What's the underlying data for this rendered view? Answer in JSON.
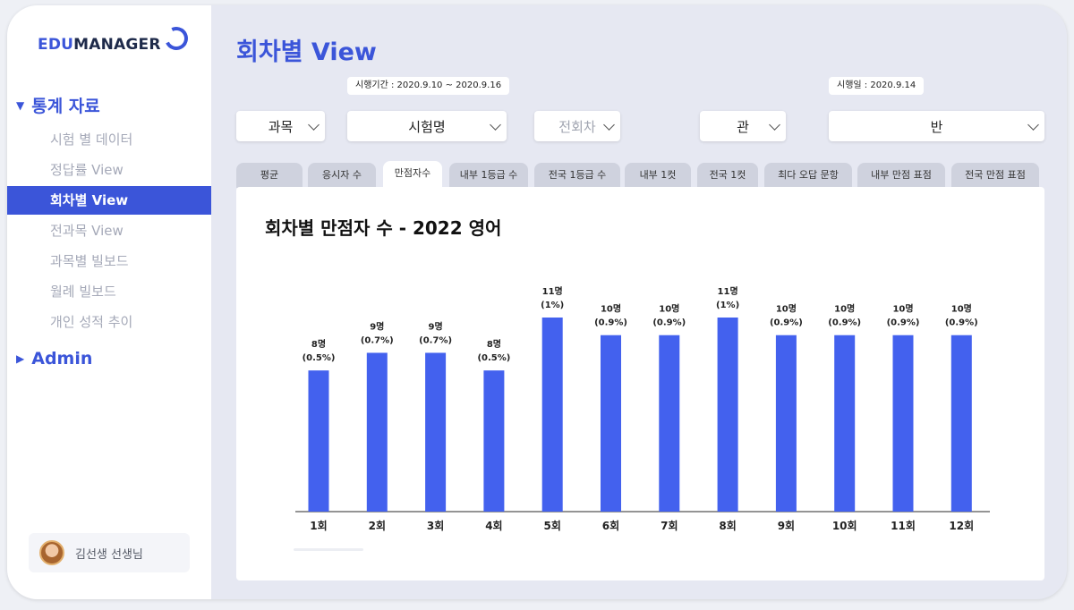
{
  "brand": {
    "edu": "EDU",
    "manager": "MANAGER"
  },
  "sidebar": {
    "section1": {
      "label": "통계 자료",
      "icon": "triangle-down-icon"
    },
    "items": [
      {
        "label": "시험 별 데이터"
      },
      {
        "label": "정답률 View"
      },
      {
        "label": "회차별 View"
      },
      {
        "label": "전과목 View"
      },
      {
        "label": "과목별 빌보드"
      },
      {
        "label": "월례 빌보드"
      },
      {
        "label": "개인 성적 추이"
      }
    ],
    "section2": {
      "label": "Admin",
      "icon": "triangle-right-icon"
    },
    "user": {
      "name": "김선생 선생님"
    }
  },
  "page": {
    "title": "회차별 View"
  },
  "filters": {
    "period_chip": "시행기간 : 2020.9.10 ~ 2020.9.16",
    "date_chip": "시행일 : 2020.9.14",
    "subject": "과목",
    "exam_name": "시험명",
    "round": "전회차",
    "hall": "관",
    "class": "반"
  },
  "tabs": [
    "평균",
    "응시자 수",
    "만점자수",
    "내부 1등급 수",
    "전국 1등급 수",
    "내부 1컷",
    "전국 1컷",
    "최다 오답 문항",
    "내부 만점 표점",
    "전국 만점 표점"
  ],
  "colors": {
    "accent": "#3b55d9",
    "bar": "#4361ee"
  },
  "chart_data": {
    "type": "bar",
    "title": "회차별 만점자 수 - 2022 영어",
    "categories": [
      "1회",
      "2회",
      "3회",
      "4회",
      "5회",
      "6회",
      "7회",
      "8회",
      "9회",
      "10회",
      "11회",
      "12회"
    ],
    "values": [
      8,
      9,
      9,
      8,
      11,
      10,
      10,
      11,
      10,
      10,
      10,
      10
    ],
    "value_labels": [
      "8명",
      "9명",
      "9명",
      "8명",
      "11명",
      "10명",
      "10명",
      "11명",
      "10명",
      "10명",
      "10명",
      "10명"
    ],
    "percent_labels": [
      "(0.5%)",
      "(0.7%)",
      "(0.7%)",
      "(0.5%)",
      "(1%)",
      "(0.9%)",
      "(0.9%)",
      "(1%)",
      "(0.9%)",
      "(0.9%)",
      "(0.9%)",
      "(0.9%)"
    ],
    "grid": false
  }
}
